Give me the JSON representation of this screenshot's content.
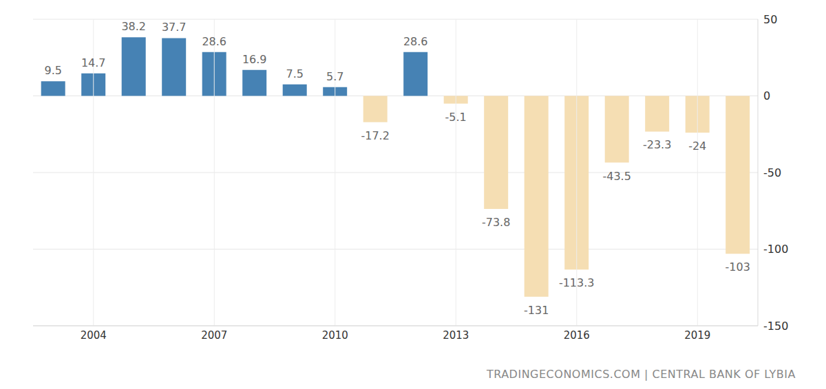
{
  "chart_data": {
    "type": "bar",
    "categories": [
      null,
      "2004",
      null,
      null,
      "2007",
      null,
      null,
      "2010",
      null,
      null,
      "2013",
      null,
      null,
      "2016",
      null,
      null,
      "2019",
      null
    ],
    "values": [
      9.5,
      14.7,
      38.2,
      37.7,
      28.6,
      16.9,
      7.5,
      5.7,
      -17.2,
      28.6,
      -5.1,
      -73.8,
      -131,
      -113.3,
      -43.5,
      -23.3,
      -24,
      -103
    ],
    "colors": [
      "#4682b4",
      "#4682b4",
      "#4682b4",
      "#4682b4",
      "#4682b4",
      "#4682b4",
      "#4682b4",
      "#4682b4",
      "#f5deb3",
      "#4682b4",
      "#f5deb3",
      "#f5deb3",
      "#f5deb3",
      "#f5deb3",
      "#f5deb3",
      "#f5deb3",
      "#f5deb3",
      "#f5deb3"
    ],
    "ylim": [
      -150,
      50
    ],
    "yticks": [
      -150,
      -100,
      -50,
      0,
      50
    ],
    "grid": true,
    "data_labels": true,
    "annotations": [
      "TRADINGECONOMICS.COM | CENTRAL BANK OF LYBIA"
    ]
  }
}
